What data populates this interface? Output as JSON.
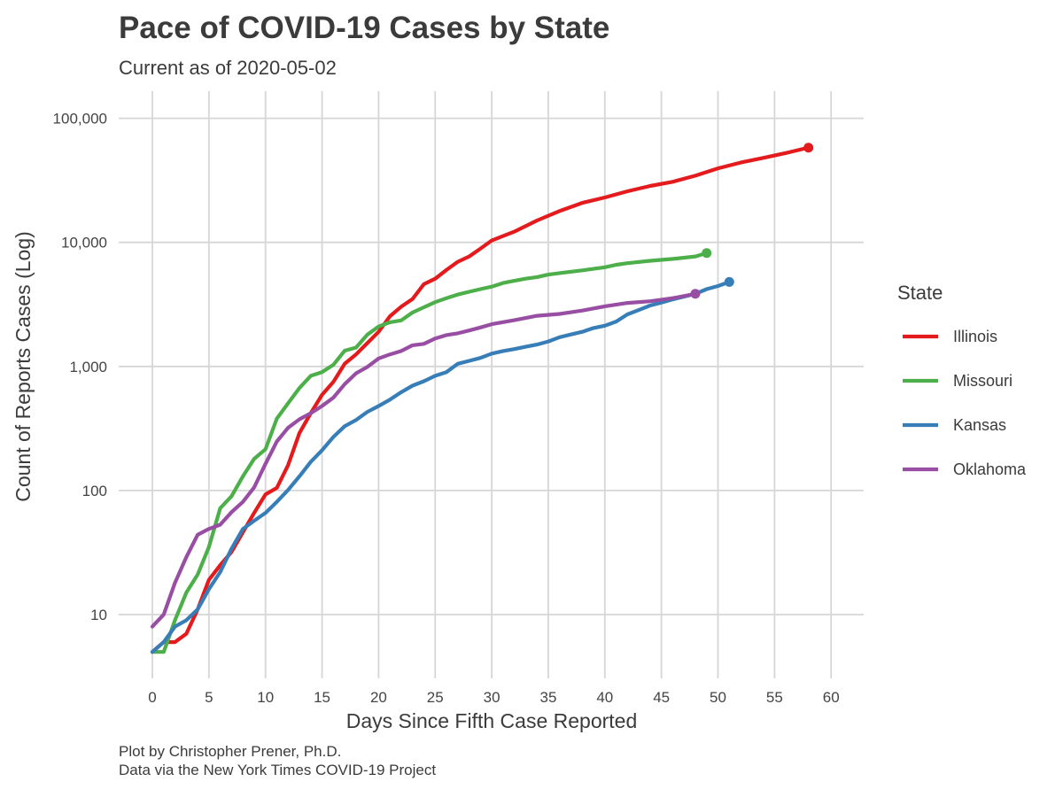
{
  "header": {
    "title": "Pace of COVID-19 Cases by State",
    "subtitle": "Current as of 2020-05-02"
  },
  "caption": {
    "line1": "Plot by Christopher Prener, Ph.D.",
    "line2": "Data via the New York Times COVID-19 Project"
  },
  "chart_data": {
    "type": "line",
    "xlabel": "Days Since Fifth Case Reported",
    "ylabel": "Count of Reports Cases (Log)",
    "xlim": [
      0,
      60
    ],
    "ylim": [
      5,
      100000
    ],
    "y_scale": "log10",
    "x_ticks": [
      0,
      5,
      10,
      15,
      20,
      25,
      30,
      35,
      40,
      45,
      50,
      55,
      60
    ],
    "y_ticks": [
      10,
      100,
      1000,
      10000,
      100000
    ],
    "y_tick_labels": [
      "10",
      "100",
      "1,000",
      "10,000",
      "100,000"
    ],
    "grid": true,
    "legend": {
      "title": "State",
      "position": "right"
    },
    "series": [
      {
        "name": "Illinois",
        "color": "#e41a1c",
        "endpoint_marker": true,
        "points": [
          [
            0,
            5
          ],
          [
            1,
            6
          ],
          [
            2,
            6
          ],
          [
            3,
            7
          ],
          [
            4,
            11
          ],
          [
            5,
            19
          ],
          [
            6,
            25
          ],
          [
            7,
            32
          ],
          [
            8,
            46
          ],
          [
            9,
            66
          ],
          [
            10,
            93
          ],
          [
            11,
            105
          ],
          [
            12,
            160
          ],
          [
            13,
            290
          ],
          [
            14,
            420
          ],
          [
            15,
            590
          ],
          [
            16,
            750
          ],
          [
            17,
            1050
          ],
          [
            18,
            1250
          ],
          [
            19,
            1540
          ],
          [
            20,
            1900
          ],
          [
            21,
            2540
          ],
          [
            22,
            3030
          ],
          [
            23,
            3500
          ],
          [
            24,
            4600
          ],
          [
            25,
            5100
          ],
          [
            26,
            6000
          ],
          [
            27,
            6980
          ],
          [
            28,
            7700
          ],
          [
            29,
            8900
          ],
          [
            30,
            10350
          ],
          [
            32,
            12200
          ],
          [
            34,
            15000
          ],
          [
            36,
            17900
          ],
          [
            38,
            20800
          ],
          [
            40,
            23000
          ],
          [
            42,
            25800
          ],
          [
            44,
            28500
          ],
          [
            46,
            30800
          ],
          [
            48,
            34500
          ],
          [
            50,
            39500
          ],
          [
            52,
            44000
          ],
          [
            54,
            48000
          ],
          [
            56,
            52500
          ],
          [
            58,
            58000
          ]
        ]
      },
      {
        "name": "Missouri",
        "color": "#4daf4a",
        "endpoint_marker": true,
        "points": [
          [
            0,
            5
          ],
          [
            1,
            5
          ],
          [
            2,
            9
          ],
          [
            3,
            15
          ],
          [
            4,
            21
          ],
          [
            5,
            35
          ],
          [
            6,
            72
          ],
          [
            7,
            90
          ],
          [
            8,
            130
          ],
          [
            9,
            180
          ],
          [
            10,
            215
          ],
          [
            11,
            380
          ],
          [
            12,
            505
          ],
          [
            13,
            670
          ],
          [
            14,
            840
          ],
          [
            15,
            900
          ],
          [
            16,
            1030
          ],
          [
            17,
            1340
          ],
          [
            18,
            1420
          ],
          [
            19,
            1800
          ],
          [
            20,
            2100
          ],
          [
            21,
            2270
          ],
          [
            22,
            2350
          ],
          [
            23,
            2720
          ],
          [
            24,
            3000
          ],
          [
            25,
            3300
          ],
          [
            26,
            3550
          ],
          [
            27,
            3800
          ],
          [
            28,
            4000
          ],
          [
            29,
            4200
          ],
          [
            30,
            4400
          ],
          [
            31,
            4700
          ],
          [
            32,
            4900
          ],
          [
            33,
            5100
          ],
          [
            34,
            5250
          ],
          [
            35,
            5500
          ],
          [
            36,
            5650
          ],
          [
            38,
            5950
          ],
          [
            40,
            6300
          ],
          [
            41,
            6600
          ],
          [
            42,
            6800
          ],
          [
            44,
            7100
          ],
          [
            46,
            7350
          ],
          [
            48,
            7700
          ],
          [
            49,
            8200
          ]
        ]
      },
      {
        "name": "Kansas",
        "color": "#377eb8",
        "endpoint_marker": true,
        "points": [
          [
            0,
            5
          ],
          [
            1,
            6
          ],
          [
            2,
            8
          ],
          [
            3,
            9
          ],
          [
            4,
            11
          ],
          [
            5,
            16
          ],
          [
            6,
            22
          ],
          [
            7,
            34
          ],
          [
            8,
            49
          ],
          [
            9,
            57
          ],
          [
            10,
            66
          ],
          [
            11,
            81
          ],
          [
            12,
            101
          ],
          [
            13,
            130
          ],
          [
            14,
            170
          ],
          [
            15,
            211
          ],
          [
            16,
            270
          ],
          [
            17,
            330
          ],
          [
            18,
            370
          ],
          [
            19,
            430
          ],
          [
            20,
            480
          ],
          [
            21,
            540
          ],
          [
            22,
            620
          ],
          [
            23,
            700
          ],
          [
            24,
            760
          ],
          [
            25,
            840
          ],
          [
            26,
            900
          ],
          [
            27,
            1050
          ],
          [
            28,
            1110
          ],
          [
            29,
            1170
          ],
          [
            30,
            1270
          ],
          [
            31,
            1330
          ],
          [
            32,
            1380
          ],
          [
            33,
            1440
          ],
          [
            34,
            1500
          ],
          [
            35,
            1590
          ],
          [
            36,
            1720
          ],
          [
            37,
            1810
          ],
          [
            38,
            1900
          ],
          [
            39,
            2040
          ],
          [
            40,
            2130
          ],
          [
            41,
            2300
          ],
          [
            42,
            2630
          ],
          [
            43,
            2850
          ],
          [
            44,
            3100
          ],
          [
            45,
            3270
          ],
          [
            46,
            3470
          ],
          [
            47,
            3650
          ],
          [
            48,
            3850
          ],
          [
            49,
            4200
          ],
          [
            50,
            4450
          ],
          [
            51,
            4800
          ]
        ]
      },
      {
        "name": "Oklahoma",
        "color": "#984ea3",
        "endpoint_marker": true,
        "points": [
          [
            0,
            8
          ],
          [
            1,
            10
          ],
          [
            2,
            18
          ],
          [
            3,
            29
          ],
          [
            4,
            44
          ],
          [
            5,
            49
          ],
          [
            6,
            53
          ],
          [
            7,
            67
          ],
          [
            8,
            81
          ],
          [
            9,
            106
          ],
          [
            10,
            164
          ],
          [
            11,
            248
          ],
          [
            12,
            320
          ],
          [
            13,
            375
          ],
          [
            14,
            420
          ],
          [
            15,
            480
          ],
          [
            16,
            560
          ],
          [
            17,
            720
          ],
          [
            18,
            880
          ],
          [
            19,
            990
          ],
          [
            20,
            1160
          ],
          [
            21,
            1250
          ],
          [
            22,
            1330
          ],
          [
            23,
            1480
          ],
          [
            24,
            1520
          ],
          [
            25,
            1680
          ],
          [
            26,
            1790
          ],
          [
            27,
            1850
          ],
          [
            28,
            1950
          ],
          [
            29,
            2060
          ],
          [
            30,
            2190
          ],
          [
            32,
            2360
          ],
          [
            34,
            2560
          ],
          [
            36,
            2650
          ],
          [
            38,
            2820
          ],
          [
            40,
            3050
          ],
          [
            42,
            3250
          ],
          [
            44,
            3350
          ],
          [
            46,
            3550
          ],
          [
            48,
            3850
          ]
        ]
      }
    ]
  }
}
